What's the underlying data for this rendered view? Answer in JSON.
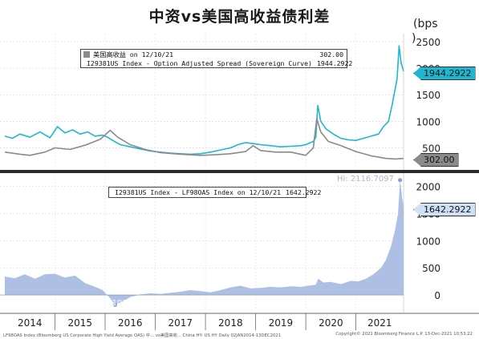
{
  "title": "中资vs美国高收益债利差",
  "top_unit": "(bps",
  "top_unit2": ")",
  "footer_left": "LF98OAS Index (Bloomberg US Corporate High Yield Average OAS) 中... vs美国高收... China HY- US HY  Daily 02JAN2014-13DEC2021",
  "footer_right": "Copyright© 2021 Bloomberg Finance L.P.      13-Dec-2021 10:53:22",
  "colors": {
    "cn_hy": "#1fb7cf",
    "us_hy": "#8a8a8a",
    "diff_fill": "#a9bde3",
    "diff_tag": "#cfe0f5"
  },
  "chart_data": [
    {
      "type": "line",
      "panel": "top",
      "title": "",
      "ylim": [
        100,
        2650
      ],
      "yticks": [
        500,
        1000,
        1500,
        2000,
        2500
      ],
      "x_range": [
        "2014-01-02",
        "2021-12-13"
      ],
      "x_years": [
        "2014",
        "2015",
        "2016",
        "2017",
        "2018",
        "2019",
        "2020",
        "2021"
      ],
      "legend": [
        {
          "label": "美国高收益 on 12/10/21",
          "value": "302.00",
          "color_key": "us_hy"
        },
        {
          "label": "I29381US Index - Option Adjusted Spread (Sovereign Curve)",
          "value": "1944.2922",
          "color_key": "cn_hy"
        }
      ],
      "last_value_tags": [
        {
          "text": "1944.2922",
          "color_key": "cn_hy",
          "value": 1944.2922
        },
        {
          "text": "302.00",
          "color_key": "us_hy",
          "value": 302
        }
      ],
      "series": [
        {
          "name": "I29381US Index - Option Adjusted Spread (Sovereign Curve)",
          "color_key": "cn_hy",
          "x": [
            2014.0,
            2014.15,
            2014.3,
            2014.5,
            2014.7,
            2014.9,
            2015.05,
            2015.2,
            2015.35,
            2015.5,
            2015.65,
            2015.8,
            2015.95,
            2016.05,
            2016.15,
            2016.3,
            2016.5,
            2016.7,
            2016.9,
            2017.1,
            2017.3,
            2017.5,
            2017.7,
            2017.9,
            2018.1,
            2018.3,
            2018.5,
            2018.65,
            2018.8,
            2018.95,
            2019.1,
            2019.3,
            2019.5,
            2019.7,
            2019.9,
            2020.0,
            2020.15,
            2020.2,
            2020.24,
            2020.3,
            2020.4,
            2020.55,
            2020.7,
            2020.85,
            2021.0,
            2021.15,
            2021.3,
            2021.45,
            2021.55,
            2021.65,
            2021.72,
            2021.78,
            2021.82,
            2021.86,
            2021.9,
            2021.95
          ],
          "y": [
            720,
            680,
            760,
            700,
            800,
            690,
            900,
            780,
            840,
            760,
            800,
            720,
            740,
            700,
            640,
            560,
            520,
            480,
            440,
            420,
            400,
            390,
            380,
            390,
            420,
            460,
            500,
            560,
            600,
            580,
            560,
            540,
            520,
            530,
            540,
            560,
            620,
            700,
            1300,
            1000,
            860,
            760,
            680,
            650,
            640,
            680,
            720,
            760,
            900,
            1000,
            1300,
            1600,
            1800,
            2420,
            2100,
            1944
          ]
        },
        {
          "name": "美国高收益",
          "color_key": "us_hy",
          "x": [
            2014.0,
            2014.3,
            2014.5,
            2014.8,
            2015.0,
            2015.3,
            2015.6,
            2015.9,
            2016.1,
            2016.25,
            2016.5,
            2016.8,
            2017.1,
            2017.5,
            2017.9,
            2018.2,
            2018.5,
            2018.8,
            2018.95,
            2019.1,
            2019.4,
            2019.7,
            2020.0,
            2020.15,
            2020.22,
            2020.3,
            2020.45,
            2020.7,
            2021.0,
            2021.3,
            2021.6,
            2021.8,
            2021.95
          ],
          "y": [
            420,
            380,
            360,
            420,
            500,
            470,
            550,
            660,
            830,
            700,
            560,
            470,
            410,
            380,
            360,
            370,
            390,
            430,
            540,
            450,
            420,
            420,
            360,
            500,
            1050,
            800,
            620,
            540,
            430,
            350,
            300,
            290,
            302
          ]
        }
      ]
    },
    {
      "type": "area",
      "panel": "bottom",
      "title": "",
      "ylim": [
        -250,
        2200
      ],
      "yticks": [
        0,
        500,
        1000,
        1500,
        2000
      ],
      "legend": [
        {
          "label": "I29381US Index - LF98OAS Index on 12/10/21",
          "value": "1642.2922",
          "color_key": "diff_fill"
        }
      ],
      "annotations": {
        "high": "Hi: 2116.7097",
        "low": "Low: -182.1019"
      },
      "last_value_tags": [
        {
          "text": "1642.2922",
          "color_key": "diff_tag",
          "value": 1642.2922
        }
      ],
      "series": [
        {
          "name": "I29381US Index - LF98OAS Index",
          "color_key": "diff_fill",
          "x": [
            2014.0,
            2014.2,
            2014.4,
            2014.6,
            2014.8,
            2015.0,
            2015.2,
            2015.4,
            2015.6,
            2015.8,
            2015.95,
            2016.1,
            2016.2,
            2016.35,
            2016.5,
            2016.7,
            2016.9,
            2017.1,
            2017.3,
            2017.5,
            2017.7,
            2017.9,
            2018.1,
            2018.3,
            2018.5,
            2018.7,
            2018.9,
            2019.1,
            2019.3,
            2019.5,
            2019.7,
            2019.9,
            2020.05,
            2020.2,
            2020.25,
            2020.35,
            2020.5,
            2020.7,
            2020.9,
            2021.05,
            2021.2,
            2021.35,
            2021.5,
            2021.6,
            2021.7,
            2021.78,
            2021.84,
            2021.88,
            2021.92,
            2021.95
          ],
          "y": [
            340,
            310,
            380,
            300,
            380,
            390,
            320,
            360,
            220,
            150,
            90,
            -60,
            -182,
            -120,
            -40,
            10,
            30,
            20,
            40,
            60,
            90,
            70,
            50,
            90,
            140,
            170,
            120,
            130,
            150,
            140,
            160,
            150,
            170,
            190,
            300,
            230,
            240,
            200,
            260,
            250,
            300,
            380,
            500,
            650,
            900,
            1200,
            1500,
            2116,
            1800,
            1642
          ]
        }
      ]
    }
  ]
}
